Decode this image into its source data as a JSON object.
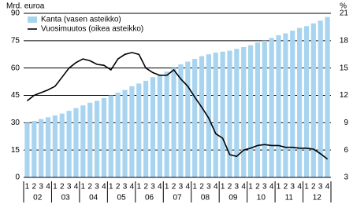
{
  "chart_data": {
    "type": "bar_line",
    "y_label": "Mrd. euroa",
    "y2_label": "%",
    "categories": [
      "1",
      "2",
      "3",
      "4",
      "1",
      "2",
      "3",
      "4",
      "1",
      "2",
      "3",
      "4",
      "1",
      "2",
      "3",
      "4",
      "1",
      "2",
      "3",
      "4",
      "1",
      "2",
      "3",
      "4",
      "1",
      "2",
      "3",
      "4",
      "1",
      "2",
      "3",
      "4",
      "1",
      "2",
      "3",
      "4",
      "1",
      "2",
      "3",
      "4",
      "1",
      "2",
      "3",
      "4"
    ],
    "groups": [
      "02",
      "03",
      "04",
      "05",
      "06",
      "07",
      "08",
      "09",
      "10",
      "11",
      "12"
    ],
    "series": [
      {
        "name": "Kanta (vasen asteikko)",
        "color": "#a8d4f0",
        "type": "bar",
        "values": [
          30,
          31,
          32,
          33,
          34,
          35,
          36.5,
          38,
          39.5,
          41,
          42,
          43.5,
          45,
          46.5,
          48,
          50,
          51.5,
          53,
          55,
          56.5,
          58,
          60,
          62,
          63.5,
          65,
          66.5,
          67.5,
          68.5,
          69,
          69.5,
          70.5,
          71.5,
          72.5,
          74,
          75,
          76.5,
          78,
          79,
          80.5,
          82,
          83,
          84.5,
          86,
          88
        ]
      },
      {
        "name": "Vuosimuutos (oikea asteikko)",
        "color": "#000000",
        "type": "line",
        "axis": "y2",
        "values": [
          11.4,
          12,
          12.3,
          12.6,
          13,
          14,
          15,
          15.6,
          16,
          15.8,
          15.4,
          15.3,
          14.8,
          16,
          16.5,
          16.7,
          16.5,
          15,
          14.5,
          14.2,
          14.2,
          14.8,
          13.8,
          13,
          11.8,
          10.7,
          9.5,
          7.8,
          7.3,
          5.5,
          5.3,
          6,
          6.2,
          6.5,
          6.6,
          6.5,
          6.5,
          6.3,
          6.3,
          6.2,
          6.2,
          6.1,
          5.6,
          5
        ]
      }
    ],
    "ylim": [
      0,
      90
    ],
    "yticks": [
      0,
      15,
      30,
      45,
      60,
      75,
      90
    ],
    "y2lim": [
      3,
      21
    ],
    "y2ticks": [
      3,
      6,
      9,
      12,
      15,
      18,
      21
    ],
    "grid": true,
    "legend": "top-left"
  }
}
